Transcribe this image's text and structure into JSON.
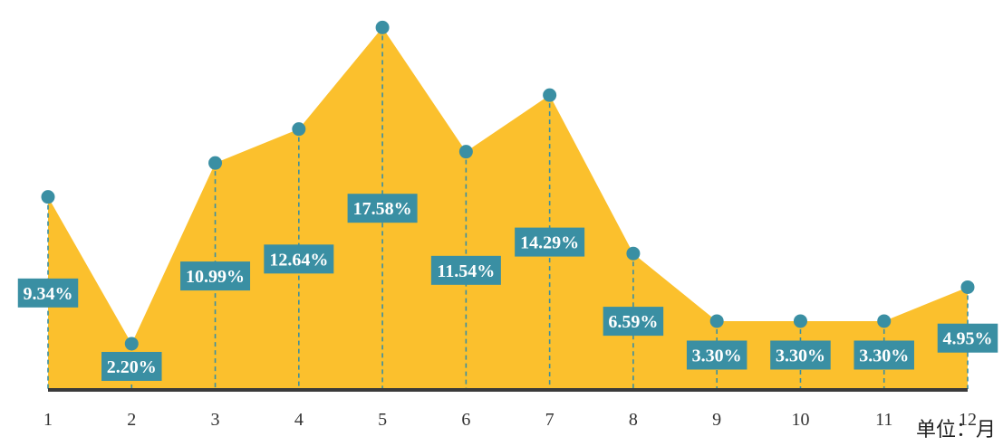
{
  "chart_data": {
    "type": "area",
    "categories": [
      "1",
      "2",
      "3",
      "4",
      "5",
      "6",
      "7",
      "8",
      "9",
      "10",
      "11",
      "12"
    ],
    "values": [
      9.34,
      2.2,
      10.99,
      12.64,
      17.58,
      11.54,
      14.29,
      6.59,
      3.3,
      3.3,
      3.3,
      4.95
    ],
    "data_labels": [
      "9.34%",
      "2.20%",
      "10.99%",
      "12.64%",
      "17.58%",
      "11.54%",
      "14.29%",
      "6.59%",
      "3.30%",
      "3.30%",
      "3.30%",
      "4.95%"
    ],
    "unit_label": "单位：月",
    "ylim": [
      0,
      18.3
    ],
    "grid": false,
    "colors": {
      "area": "#FBC02D",
      "marker": "#3A8FA3",
      "label_bg": "#3A8FA3",
      "label_text": "#FFFFFF",
      "axis": "#3a3a3a"
    }
  }
}
